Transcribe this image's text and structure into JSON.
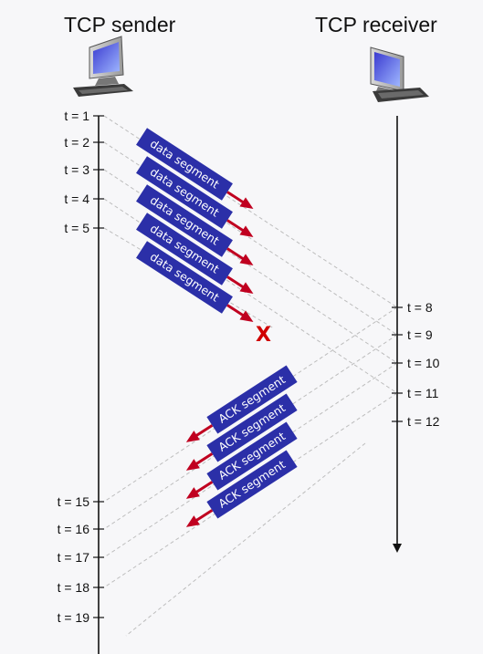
{
  "sender": {
    "title": "TCP sender",
    "icon": "computer-icon"
  },
  "receiver": {
    "title": "TCP receiver",
    "icon": "computer-icon"
  },
  "sender_times": [
    "t = 1",
    "t = 2",
    "t = 3",
    "t = 4",
    "t = 5",
    "t = 15",
    "t = 16",
    "t = 17",
    "t = 18",
    "t = 19"
  ],
  "receiver_times": [
    "t = 8",
    "t = 9",
    "t = 10",
    "t = 11",
    "t = 12"
  ],
  "data_segments": [
    "data segment",
    "data segment",
    "data segment",
    "data segment",
    "data segment"
  ],
  "ack_segments": [
    "ACK segment",
    "ACK segment",
    "ACK segment",
    "ACK segment"
  ],
  "loss_marker": "X",
  "colors": {
    "segment_fill": "#2b2fa8",
    "arrow": "#c00020",
    "loss": "#d00000",
    "timeline": "#111111",
    "dashed": "#bdbdbd",
    "background": "#f7f7f9"
  }
}
